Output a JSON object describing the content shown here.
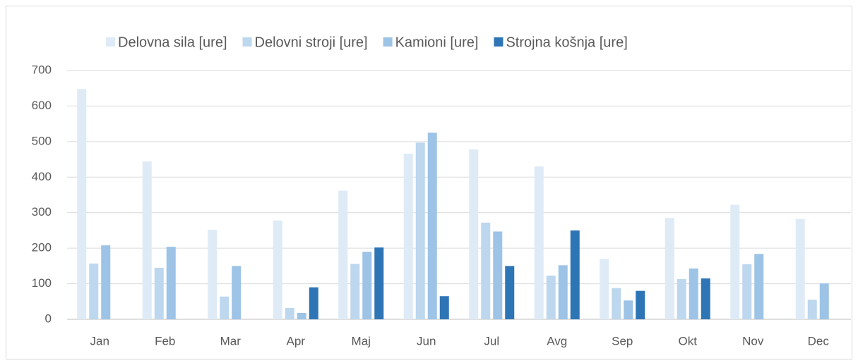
{
  "chart_data": {
    "type": "bar",
    "categories": [
      "Jan",
      "Feb",
      "Mar",
      "Apr",
      "Maj",
      "Jun",
      "Jul",
      "Avg",
      "Sep",
      "Okt",
      "Nov",
      "Dec"
    ],
    "series": [
      {
        "name": "Delovna sila [ure]",
        "color": "#deebf7",
        "values": [
          648,
          444,
          252,
          278,
          362,
          466,
          478,
          430,
          170,
          285,
          322,
          282
        ]
      },
      {
        "name": "Delovni stroji [ure]",
        "color": "#bdd7ee",
        "values": [
          157,
          145,
          64,
          32,
          156,
          497,
          272,
          123,
          88,
          113,
          155,
          55
        ]
      },
      {
        "name": "Kamioni [ure]",
        "color": "#9dc3e6",
        "values": [
          208,
          204,
          150,
          18,
          190,
          525,
          247,
          152,
          53,
          143,
          184,
          101
        ]
      },
      {
        "name": "Strojna košnja [ure]",
        "color": "#2e75b6",
        "values": [
          null,
          null,
          null,
          90,
          202,
          65,
          150,
          250,
          80,
          115,
          null,
          null
        ]
      }
    ],
    "ylim": [
      0,
      700
    ],
    "yticks": [
      0,
      100,
      200,
      300,
      400,
      500,
      600,
      700
    ],
    "grid": true,
    "legend": "top"
  }
}
